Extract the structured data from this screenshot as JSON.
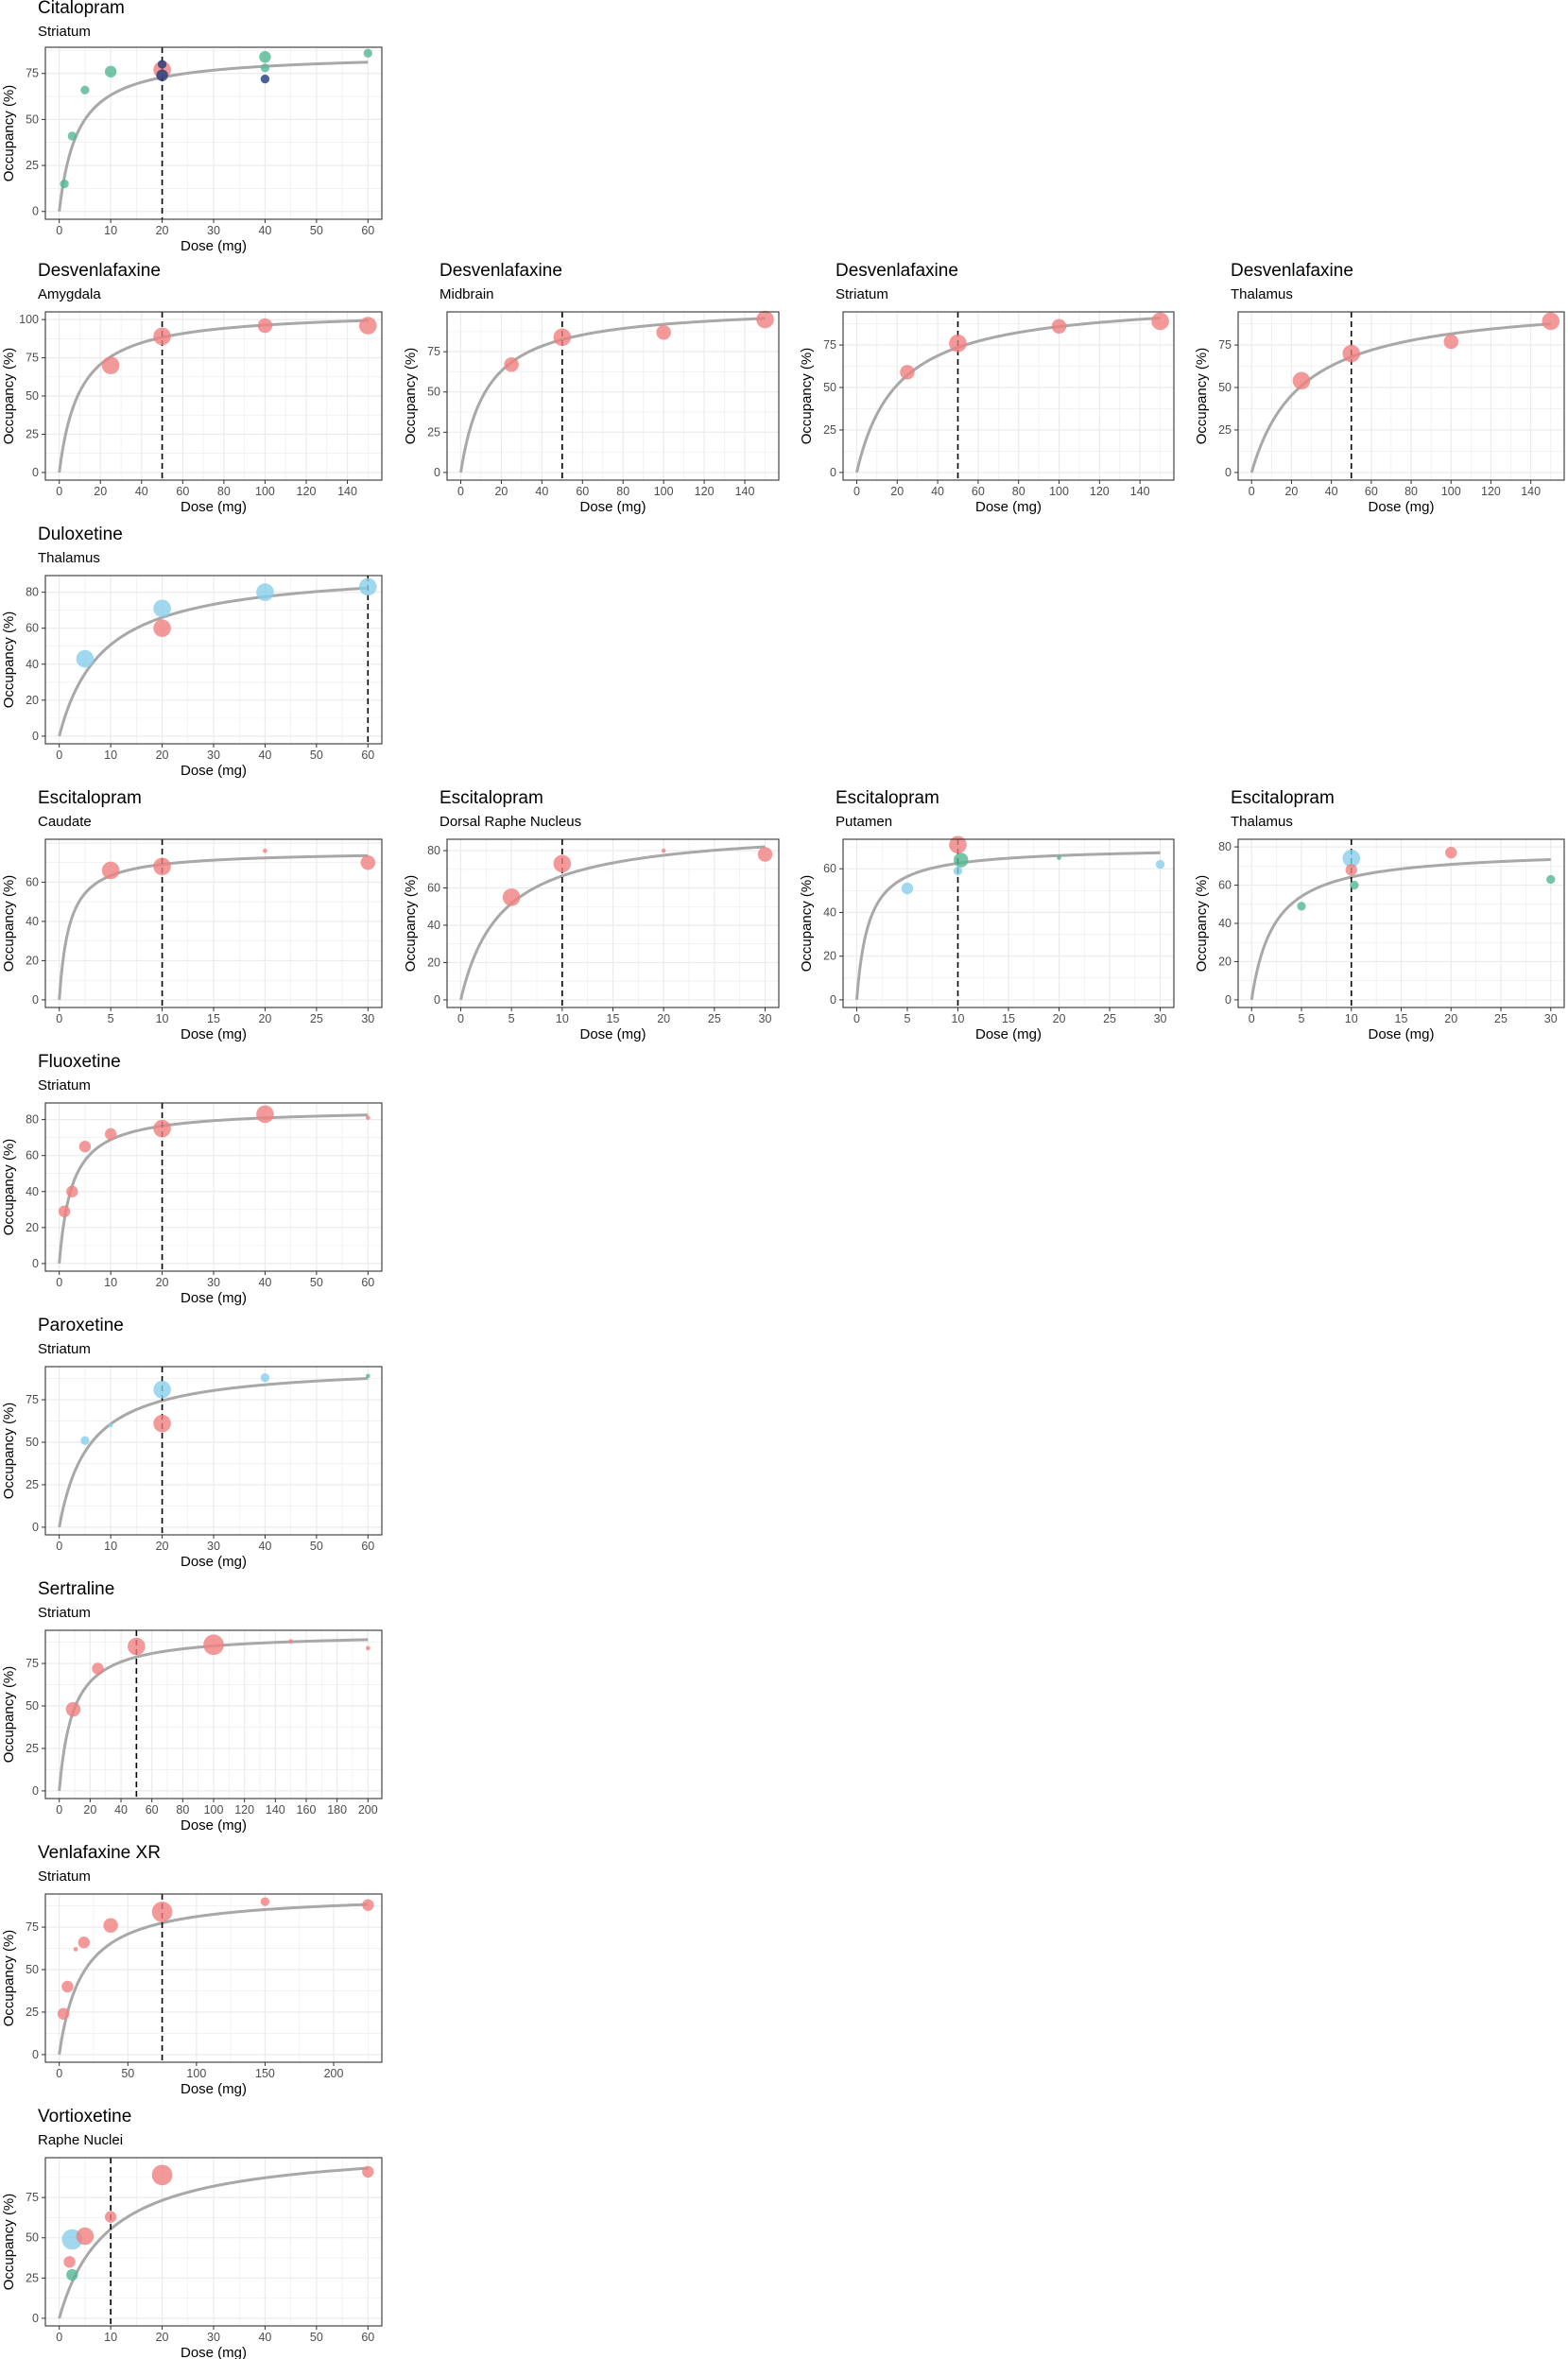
{
  "figure": {
    "x_axis_label": "Dose (mg)",
    "y_axis_label": "Occupancy (%)"
  },
  "colors": {
    "curve": "#a8a8a8",
    "salmon": "#f08080",
    "skyblue": "#87ceeb",
    "teal": "#52b894",
    "navy": "#1f3a7a",
    "grid": "#ebebeb",
    "panel_border": "#333333"
  },
  "chart_data": [
    {
      "type": "scatter",
      "title": "Citalopram",
      "subtitle": "Striatum",
      "xlabel": "Dose (mg)",
      "ylabel": "Occupancy (%)",
      "xlim": [
        0,
        60
      ],
      "ylim": [
        0,
        85
      ],
      "xticks": [
        0,
        10,
        20,
        30,
        40,
        50,
        60
      ],
      "yticks": [
        0,
        25,
        50,
        75
      ],
      "reference_dose": 20,
      "curve": {
        "emax": 86,
        "ed50": 3.6
      },
      "grid": true,
      "points": [
        {
          "x": 1,
          "y": 15,
          "size": 3,
          "color": "teal"
        },
        {
          "x": 2.5,
          "y": 41,
          "size": 3,
          "color": "teal"
        },
        {
          "x": 5,
          "y": 66,
          "size": 3,
          "color": "teal"
        },
        {
          "x": 10,
          "y": 76,
          "size": 4,
          "color": "teal"
        },
        {
          "x": 20,
          "y": 77,
          "size": 6,
          "color": "salmon"
        },
        {
          "x": 20,
          "y": 74,
          "size": 4,
          "color": "navy"
        },
        {
          "x": 20,
          "y": 80,
          "size": 3,
          "color": "navy"
        },
        {
          "x": 40,
          "y": 84,
          "size": 4,
          "color": "teal"
        },
        {
          "x": 40,
          "y": 72,
          "size": 3,
          "color": "navy"
        },
        {
          "x": 40,
          "y": 78,
          "size": 3,
          "color": "teal"
        },
        {
          "x": 60,
          "y": 86,
          "size": 3,
          "color": "teal"
        }
      ]
    },
    {
      "type": "scatter",
      "title": "Desvenlafaxine",
      "subtitle": "Amygdala",
      "xlabel": "Dose (mg)",
      "ylabel": "Occupancy (%)",
      "xlim": [
        0,
        150
      ],
      "ylim": [
        0,
        100
      ],
      "xticks": [
        0,
        20,
        40,
        60,
        80,
        100,
        120,
        140
      ],
      "yticks": [
        0,
        25,
        50,
        75,
        100
      ],
      "reference_dose": 50,
      "curve": {
        "emax": 106,
        "ed50": 10
      },
      "grid": true,
      "points": [
        {
          "x": 25,
          "y": 70,
          "size": 6,
          "color": "salmon"
        },
        {
          "x": 50,
          "y": 89,
          "size": 6,
          "color": "salmon"
        },
        {
          "x": 100,
          "y": 96,
          "size": 5,
          "color": "salmon"
        },
        {
          "x": 150,
          "y": 96,
          "size": 6,
          "color": "salmon"
        }
      ]
    },
    {
      "type": "scatter",
      "title": "Desvenlafaxine",
      "subtitle": "Midbrain",
      "xlabel": "Dose (mg)",
      "ylabel": "Occupancy (%)",
      "xlim": [
        0,
        150
      ],
      "ylim": [
        0,
        95
      ],
      "xticks": [
        0,
        20,
        40,
        60,
        80,
        100,
        120,
        140
      ],
      "yticks": [
        0,
        25,
        50,
        75
      ],
      "reference_dose": 50,
      "curve": {
        "emax": 104,
        "ed50": 13
      },
      "grid": true,
      "points": [
        {
          "x": 25,
          "y": 67,
          "size": 5,
          "color": "salmon"
        },
        {
          "x": 50,
          "y": 84,
          "size": 6,
          "color": "salmon"
        },
        {
          "x": 100,
          "y": 87,
          "size": 5,
          "color": "salmon"
        },
        {
          "x": 150,
          "y": 95,
          "size": 6,
          "color": "salmon"
        }
      ]
    },
    {
      "type": "scatter",
      "title": "Desvenlafaxine",
      "subtitle": "Striatum",
      "xlabel": "Dose (mg)",
      "ylabel": "Occupancy (%)",
      "xlim": [
        0,
        150
      ],
      "ylim": [
        0,
        90
      ],
      "xticks": [
        0,
        20,
        40,
        60,
        80,
        100,
        120,
        140
      ],
      "yticks": [
        0,
        25,
        50,
        75
      ],
      "reference_dose": 50,
      "curve": {
        "emax": 103,
        "ed50": 20
      },
      "grid": true,
      "points": [
        {
          "x": 25,
          "y": 59,
          "size": 5,
          "color": "salmon"
        },
        {
          "x": 50,
          "y": 76,
          "size": 6,
          "color": "salmon"
        },
        {
          "x": 100,
          "y": 86,
          "size": 5,
          "color": "salmon"
        },
        {
          "x": 150,
          "y": 89,
          "size": 6,
          "color": "salmon"
        }
      ]
    },
    {
      "type": "scatter",
      "title": "Desvenlafaxine",
      "subtitle": "Thalamus",
      "xlabel": "Dose (mg)",
      "ylabel": "Occupancy (%)",
      "xlim": [
        0,
        150
      ],
      "ylim": [
        0,
        90
      ],
      "xticks": [
        0,
        20,
        40,
        60,
        80,
        100,
        120,
        140
      ],
      "yticks": [
        0,
        25,
        50,
        75
      ],
      "reference_dose": 50,
      "curve": {
        "emax": 102,
        "ed50": 25
      },
      "grid": true,
      "points": [
        {
          "x": 25,
          "y": 54,
          "size": 6,
          "color": "salmon"
        },
        {
          "x": 50,
          "y": 70,
          "size": 6,
          "color": "salmon"
        },
        {
          "x": 100,
          "y": 77,
          "size": 5,
          "color": "salmon"
        },
        {
          "x": 150,
          "y": 89,
          "size": 6,
          "color": "salmon"
        }
      ]
    },
    {
      "type": "scatter",
      "title": "Duloxetine",
      "subtitle": "Thalamus",
      "xlabel": "Dose (mg)",
      "ylabel": "Occupancy (%)",
      "xlim": [
        0,
        60
      ],
      "ylim": [
        0,
        85
      ],
      "xticks": [
        0,
        10,
        20,
        30,
        40,
        50,
        60
      ],
      "yticks": [
        0,
        20,
        40,
        60,
        80
      ],
      "reference_dose": 60,
      "curve": {
        "emax": 94,
        "ed50": 8.5
      },
      "grid": true,
      "points": [
        {
          "x": 5,
          "y": 43,
          "size": 6,
          "color": "skyblue"
        },
        {
          "x": 20,
          "y": 60,
          "size": 6,
          "color": "salmon"
        },
        {
          "x": 20,
          "y": 71,
          "size": 6,
          "color": "skyblue"
        },
        {
          "x": 40,
          "y": 80,
          "size": 6,
          "color": "skyblue"
        },
        {
          "x": 60,
          "y": 83,
          "size": 6,
          "color": "skyblue"
        }
      ]
    },
    {
      "type": "scatter",
      "title": "Escitalopram",
      "subtitle": "Caudate",
      "xlabel": "Dose (mg)",
      "ylabel": "Occupancy (%)",
      "xlim": [
        0,
        30
      ],
      "ylim": [
        0,
        78
      ],
      "xticks": [
        0,
        5,
        10,
        15,
        20,
        25,
        30
      ],
      "yticks": [
        0,
        20,
        40,
        60
      ],
      "reference_dose": 10,
      "curve": {
        "emax": 76,
        "ed50": 1.0
      },
      "grid": true,
      "points": [
        {
          "x": 5,
          "y": 66,
          "size": 6,
          "color": "salmon"
        },
        {
          "x": 10,
          "y": 68,
          "size": 6,
          "color": "salmon"
        },
        {
          "x": 20,
          "y": 76,
          "size": 1.5,
          "color": "salmon"
        },
        {
          "x": 30,
          "y": 70,
          "size": 5,
          "color": "salmon"
        }
      ]
    },
    {
      "type": "scatter",
      "title": "Escitalopram",
      "subtitle": "Dorsal Raphe Nucleus",
      "xlabel": "Dose (mg)",
      "ylabel": "Occupancy (%)",
      "xlim": [
        0,
        30
      ],
      "ylim": [
        0,
        82
      ],
      "xticks": [
        0,
        5,
        10,
        15,
        20,
        25,
        30
      ],
      "yticks": [
        0,
        20,
        40,
        60,
        80
      ],
      "reference_dose": 10,
      "curve": {
        "emax": 93,
        "ed50": 4.0
      },
      "grid": true,
      "points": [
        {
          "x": 5,
          "y": 55,
          "size": 6,
          "color": "salmon"
        },
        {
          "x": 10,
          "y": 73,
          "size": 6,
          "color": "salmon"
        },
        {
          "x": 20,
          "y": 80,
          "size": 1.5,
          "color": "salmon"
        },
        {
          "x": 30,
          "y": 78,
          "size": 5,
          "color": "salmon"
        }
      ]
    },
    {
      "type": "scatter",
      "title": "Escitalopram",
      "subtitle": "Putamen",
      "xlabel": "Dose (mg)",
      "ylabel": "Occupancy (%)",
      "xlim": [
        0,
        30
      ],
      "ylim": [
        0,
        70
      ],
      "xticks": [
        0,
        5,
        10,
        15,
        20,
        25,
        30
      ],
      "yticks": [
        0,
        20,
        40,
        60
      ],
      "reference_dose": 10,
      "curve": {
        "emax": 70,
        "ed50": 1.2
      },
      "grid": true,
      "points": [
        {
          "x": 5,
          "y": 51,
          "size": 4,
          "color": "skyblue"
        },
        {
          "x": 10,
          "y": 71,
          "size": 6,
          "color": "salmon"
        },
        {
          "x": 10,
          "y": 59,
          "size": 3,
          "color": "skyblue"
        },
        {
          "x": 10.3,
          "y": 64,
          "size": 5,
          "color": "teal"
        },
        {
          "x": 20,
          "y": 65,
          "size": 1.5,
          "color": "teal"
        },
        {
          "x": 30,
          "y": 62,
          "size": 3,
          "color": "skyblue"
        }
      ]
    },
    {
      "type": "scatter",
      "title": "Escitalopram",
      "subtitle": "Thalamus",
      "xlabel": "Dose (mg)",
      "ylabel": "Occupancy (%)",
      "xlim": [
        0,
        30
      ],
      "ylim": [
        0,
        80
      ],
      "xticks": [
        0,
        5,
        10,
        15,
        20,
        25,
        30
      ],
      "yticks": [
        0,
        20,
        40,
        60,
        80
      ],
      "reference_dose": 10,
      "curve": {
        "emax": 79,
        "ed50": 2.3
      },
      "grid": true,
      "points": [
        {
          "x": 5,
          "y": 49,
          "size": 3,
          "color": "teal"
        },
        {
          "x": 10,
          "y": 74,
          "size": 6,
          "color": "skyblue"
        },
        {
          "x": 10,
          "y": 68,
          "size": 4,
          "color": "salmon"
        },
        {
          "x": 10.3,
          "y": 60,
          "size": 3,
          "color": "teal"
        },
        {
          "x": 20,
          "y": 77,
          "size": 4,
          "color": "salmon"
        },
        {
          "x": 30,
          "y": 63,
          "size": 3,
          "color": "teal"
        }
      ]
    },
    {
      "type": "scatter",
      "title": "Fluoxetine",
      "subtitle": "Striatum",
      "xlabel": "Dose (mg)",
      "ylabel": "Occupancy (%)",
      "xlim": [
        0,
        60
      ],
      "ylim": [
        0,
        85
      ],
      "xticks": [
        0,
        10,
        20,
        30,
        40,
        50,
        60
      ],
      "yticks": [
        0,
        20,
        40,
        60,
        80
      ],
      "reference_dose": 20,
      "curve": {
        "emax": 86,
        "ed50": 2.5
      },
      "grid": true,
      "points": [
        {
          "x": 1,
          "y": 29,
          "size": 4,
          "color": "salmon"
        },
        {
          "x": 2.5,
          "y": 40,
          "size": 4,
          "color": "salmon"
        },
        {
          "x": 5,
          "y": 65,
          "size": 4,
          "color": "salmon"
        },
        {
          "x": 10,
          "y": 72,
          "size": 4,
          "color": "salmon"
        },
        {
          "x": 20,
          "y": 75,
          "size": 6,
          "color": "salmon"
        },
        {
          "x": 40,
          "y": 83,
          "size": 6,
          "color": "salmon"
        },
        {
          "x": 60,
          "y": 81,
          "size": 1.5,
          "color": "salmon"
        }
      ]
    },
    {
      "type": "scatter",
      "title": "Paroxetine",
      "subtitle": "Striatum",
      "xlabel": "Dose (mg)",
      "ylabel": "Occupancy (%)",
      "xlim": [
        0,
        60
      ],
      "ylim": [
        0,
        90
      ],
      "xticks": [
        0,
        10,
        20,
        30,
        40,
        50,
        60
      ],
      "yticks": [
        0,
        25,
        50,
        75
      ],
      "reference_dose": 20,
      "curve": {
        "emax": 96,
        "ed50": 5.8
      },
      "grid": true,
      "points": [
        {
          "x": 5,
          "y": 51,
          "size": 3,
          "color": "skyblue"
        },
        {
          "x": 10,
          "y": 60,
          "size": 1.5,
          "color": "skyblue"
        },
        {
          "x": 20,
          "y": 61,
          "size": 6,
          "color": "salmon"
        },
        {
          "x": 20,
          "y": 81,
          "size": 6,
          "color": "skyblue"
        },
        {
          "x": 40,
          "y": 88,
          "size": 3,
          "color": "skyblue"
        },
        {
          "x": 60,
          "y": 89,
          "size": 1.5,
          "color": "teal"
        }
      ]
    },
    {
      "type": "scatter",
      "title": "Sertraline",
      "subtitle": "Striatum",
      "xlabel": "Dose (mg)",
      "ylabel": "Occupancy (%)",
      "xlim": [
        0,
        200
      ],
      "ylim": [
        0,
        90
      ],
      "xticks": [
        0,
        20,
        40,
        60,
        80,
        100,
        120,
        140,
        160,
        180,
        200
      ],
      "yticks": [
        0,
        25,
        50,
        75
      ],
      "reference_dose": 50,
      "curve": {
        "emax": 93,
        "ed50": 9
      },
      "grid": true,
      "points": [
        {
          "x": 9,
          "y": 48,
          "size": 5,
          "color": "salmon"
        },
        {
          "x": 25,
          "y": 72,
          "size": 4,
          "color": "salmon"
        },
        {
          "x": 50,
          "y": 85,
          "size": 6,
          "color": "salmon"
        },
        {
          "x": 100,
          "y": 86,
          "size": 7,
          "color": "salmon"
        },
        {
          "x": 150,
          "y": 88,
          "size": 1.5,
          "color": "salmon"
        },
        {
          "x": 200,
          "y": 84,
          "size": 1.5,
          "color": "salmon"
        }
      ]
    },
    {
      "type": "scatter",
      "title": "Venlafaxine XR",
      "subtitle": "Striatum",
      "xlabel": "Dose (mg)",
      "ylabel": "Occupancy (%)",
      "xlim": [
        0,
        225
      ],
      "ylim": [
        0,
        90
      ],
      "xticks": [
        0,
        50,
        100,
        150,
        200
      ],
      "yticks": [
        0,
        25,
        50,
        75
      ],
      "reference_dose": 75,
      "curve": {
        "emax": 95,
        "ed50": 17
      },
      "grid": true,
      "points": [
        {
          "x": 3,
          "y": 24,
          "size": 4,
          "color": "salmon"
        },
        {
          "x": 6,
          "y": 40,
          "size": 4,
          "color": "salmon"
        },
        {
          "x": 12,
          "y": 62,
          "size": 1.5,
          "color": "salmon"
        },
        {
          "x": 18,
          "y": 66,
          "size": 4,
          "color": "salmon"
        },
        {
          "x": 37.5,
          "y": 76,
          "size": 5,
          "color": "salmon"
        },
        {
          "x": 75,
          "y": 84,
          "size": 7,
          "color": "salmon"
        },
        {
          "x": 150,
          "y": 90,
          "size": 3,
          "color": "salmon"
        },
        {
          "x": 225,
          "y": 88,
          "size": 4,
          "color": "salmon"
        }
      ]
    },
    {
      "type": "scatter",
      "title": "Vortioxetine",
      "subtitle": "Raphe Nuclei",
      "xlabel": "Dose (mg)",
      "ylabel": "Occupancy (%)",
      "xlim": [
        0,
        60
      ],
      "ylim": [
        0,
        95
      ],
      "xticks": [
        0,
        10,
        20,
        30,
        40,
        50,
        60
      ],
      "yticks": [
        0,
        25,
        50,
        75
      ],
      "reference_dose": 10,
      "curve": {
        "emax": 108,
        "ed50": 9.5
      },
      "grid": true,
      "points": [
        {
          "x": 2.5,
          "y": 27,
          "size": 4,
          "color": "teal"
        },
        {
          "x": 2,
          "y": 35,
          "size": 4,
          "color": "salmon"
        },
        {
          "x": 2.5,
          "y": 49,
          "size": 7,
          "color": "skyblue"
        },
        {
          "x": 5,
          "y": 51,
          "size": 6,
          "color": "salmon"
        },
        {
          "x": 10,
          "y": 63,
          "size": 4,
          "color": "salmon"
        },
        {
          "x": 20,
          "y": 89,
          "size": 7,
          "color": "salmon"
        },
        {
          "x": 60,
          "y": 91,
          "size": 4,
          "color": "salmon"
        }
      ]
    }
  ]
}
